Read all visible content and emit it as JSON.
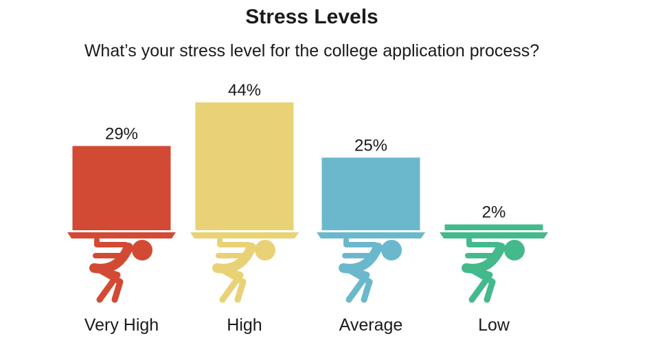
{
  "chart_data": {
    "type": "bar",
    "title": "Stress Levels",
    "subtitle": "What’s your stress level for the college application process?",
    "categories": [
      "Very High",
      "High",
      "Average",
      "Low"
    ],
    "values": [
      29,
      44,
      25,
      2
    ],
    "value_labels": [
      "29%",
      "44%",
      "25%",
      "2%"
    ],
    "colors": [
      "#d24a33",
      "#e9d276",
      "#6bb8cd",
      "#44b98c"
    ],
    "ylim": [
      0,
      44
    ],
    "grid": false,
    "legend": "none"
  },
  "icons": {
    "figure": "weightlifter-figure-icon"
  }
}
